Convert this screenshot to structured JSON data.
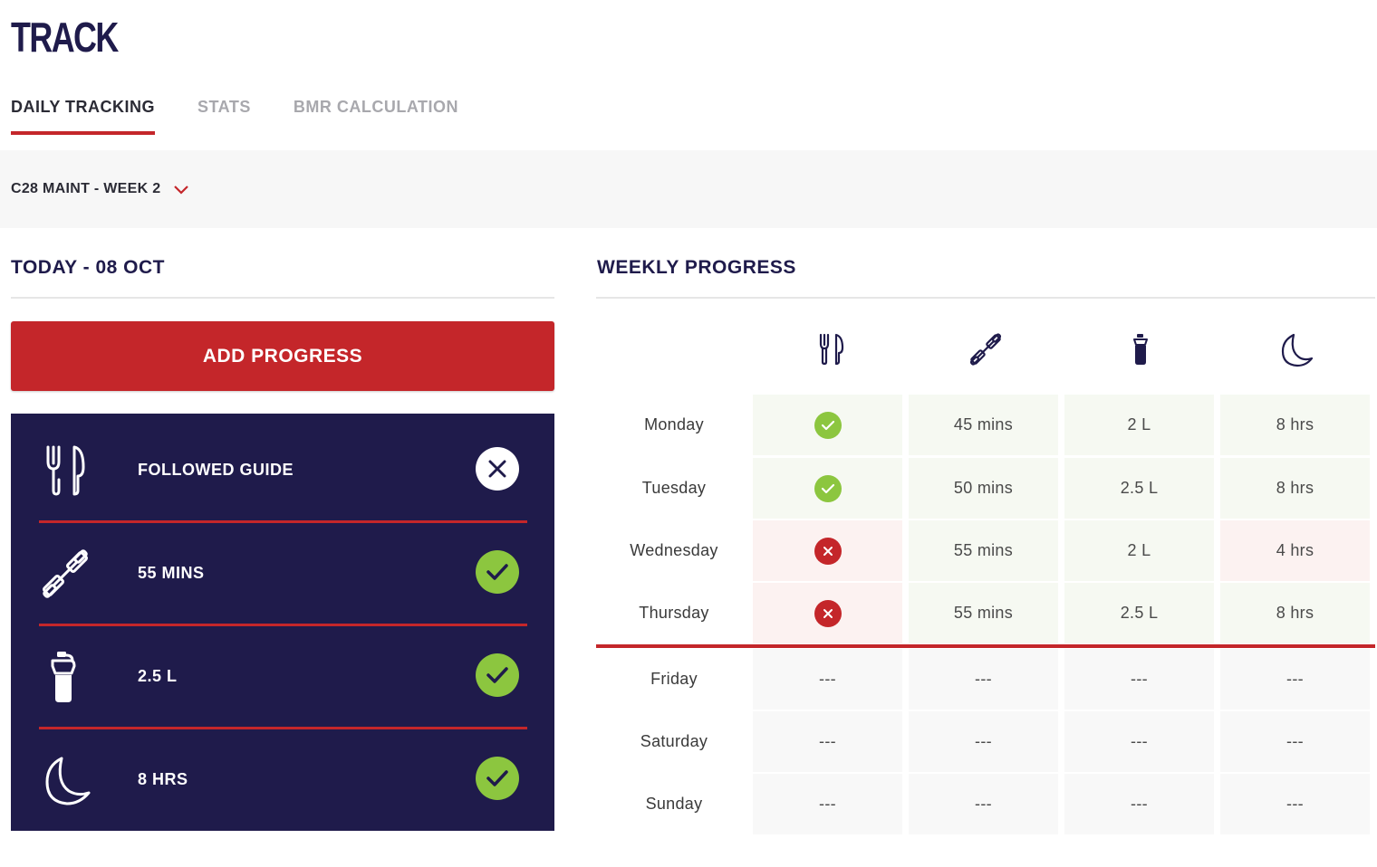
{
  "app": {
    "title": "TRACK"
  },
  "tabs": [
    {
      "label": "DAILY TRACKING",
      "active": true
    },
    {
      "label": "STATS",
      "active": false
    },
    {
      "label": "BMR CALCULATION",
      "active": false
    }
  ],
  "program": {
    "label": "C28 MAINT - WEEK 2"
  },
  "today": {
    "title": "TODAY - 08 OCT",
    "add_button": "ADD PROGRESS",
    "rows": [
      {
        "icon": "cutlery-icon",
        "label": "FOLLOWED GUIDE",
        "status": "not-done"
      },
      {
        "icon": "dumbbell-icon",
        "label": "55 MINS",
        "status": "done"
      },
      {
        "icon": "water-bottle-icon",
        "label": "2.5 L",
        "status": "done"
      },
      {
        "icon": "moon-icon",
        "label": "8 HRS",
        "status": "done"
      }
    ]
  },
  "weekly": {
    "title": "WEEKLY PROGRESS",
    "columns": [
      {
        "icon": "cutlery-icon"
      },
      {
        "icon": "dumbbell-icon"
      },
      {
        "icon": "water-bottle-icon"
      },
      {
        "icon": "moon-icon"
      }
    ],
    "days": [
      {
        "day": "Monday",
        "guide": "check",
        "exercise": "45 mins",
        "water": "2 L",
        "sleep": "8 hrs",
        "status": [
          "good",
          "good",
          "good",
          "good"
        ]
      },
      {
        "day": "Tuesday",
        "guide": "check",
        "exercise": "50 mins",
        "water": "2.5 L",
        "sleep": "8 hrs",
        "status": [
          "good",
          "good",
          "good",
          "good"
        ]
      },
      {
        "day": "Wednesday",
        "guide": "cross",
        "exercise": "55 mins",
        "water": "2 L",
        "sleep": "4 hrs",
        "status": [
          "bad",
          "good",
          "good",
          "bad"
        ]
      },
      {
        "day": "Thursday",
        "guide": "cross",
        "exercise": "55 mins",
        "water": "2.5 L",
        "sleep": "8 hrs",
        "status": [
          "bad",
          "good",
          "good",
          "good"
        ]
      },
      {
        "day": "Friday",
        "guide": "---",
        "exercise": "---",
        "water": "---",
        "sleep": "---",
        "status": [
          "future",
          "future",
          "future",
          "future"
        ]
      },
      {
        "day": "Saturday",
        "guide": "---",
        "exercise": "---",
        "water": "---",
        "sleep": "---",
        "status": [
          "future",
          "future",
          "future",
          "future"
        ]
      },
      {
        "day": "Sunday",
        "guide": "---",
        "exercise": "---",
        "water": "---",
        "sleep": "---",
        "status": [
          "future",
          "future",
          "future",
          "future"
        ]
      }
    ]
  },
  "colors": {
    "navy": "#1f1b4b",
    "red": "#c4262a",
    "green": "#8cc63f",
    "good_bg": "#f6f9f2",
    "bad_bg": "#fcf2f1",
    "future_bg": "#f8f8f8"
  }
}
